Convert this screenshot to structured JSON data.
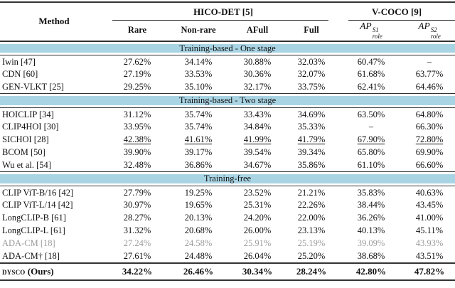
{
  "colors": {
    "section_bg": "#a9d4e4",
    "muted_text": "#9b9b9b",
    "rule": "#333333"
  },
  "table": {
    "header": {
      "method": "Method",
      "group1": "HICO-DET [5]",
      "group2": "V-COCO [9]",
      "subheaders": [
        "Rare",
        "Non-rare",
        "AFull",
        "Full"
      ],
      "ap1": {
        "base": "AP",
        "sup": "S1",
        "sub": "role"
      },
      "ap2": {
        "base": "AP",
        "sup": "S2",
        "sub": "role"
      }
    },
    "sections": [
      {
        "label": "Training-based - One stage",
        "rows": [
          {
            "method": "Iwin [47]",
            "values": [
              "27.62%",
              "34.14%",
              "30.88%",
              "32.03%",
              "60.47%",
              "–"
            ]
          },
          {
            "method": "CDN [60]",
            "values": [
              "27.19%",
              "33.53%",
              "30.36%",
              "32.07%",
              "61.68%",
              "63.77%"
            ]
          },
          {
            "method": "GEN-VLKT [25]",
            "values": [
              "29.25%",
              "35.10%",
              "32.17%",
              "33.75%",
              "62.41%",
              "64.46%"
            ]
          }
        ]
      },
      {
        "label": "Training-based - Two stage",
        "rows": [
          {
            "method": "HOICLIP [34]",
            "values": [
              "31.12%",
              "35.74%",
              "33.43%",
              "34.69%",
              "63.50%",
              "64.80%"
            ]
          },
          {
            "method": "CLIP4HOI [30]",
            "values": [
              "33.95%",
              "35.74%",
              "34.84%",
              "35.33%",
              "–",
              "66.30%"
            ]
          },
          {
            "method": "SICHOI [28]",
            "values": [
              "42.38%",
              "41.61%",
              "41.99%",
              "41.79%",
              "67.90%",
              "72.80%"
            ],
            "underline": true
          },
          {
            "method": "BCOM [50]",
            "values": [
              "39.90%",
              "39.17%",
              "39.54%",
              "39.34%",
              "65.80%",
              "69.90%"
            ]
          },
          {
            "method": "Wu et al. [54]",
            "values": [
              "32.48%",
              "36.86%",
              "34.67%",
              "35.86%",
              "61.10%",
              "66.60%"
            ]
          }
        ]
      },
      {
        "label": "Training-free",
        "rows": [
          {
            "method": "CLIP ViT-B/16 [42]",
            "values": [
              "27.79%",
              "19.25%",
              "23.52%",
              "21.21%",
              "35.83%",
              "40.63%"
            ]
          },
          {
            "method": "CLIP ViT-L/14 [42]",
            "values": [
              "30.97%",
              "19.65%",
              "25.31%",
              "22.26%",
              "38.44%",
              "43.45%"
            ]
          },
          {
            "method": "LongCLIP-B [61]",
            "values": [
              "28.27%",
              "20.13%",
              "24.20%",
              "22.00%",
              "36.26%",
              "41.00%"
            ]
          },
          {
            "method": "LongCLIP-L [61]",
            "values": [
              "31.32%",
              "20.68%",
              "26.00%",
              "23.13%",
              "40.13%",
              "45.11%"
            ]
          },
          {
            "method": "ADA-CM [18]",
            "values": [
              "27.24%",
              "24.58%",
              "25.91%",
              "25.19%",
              "39.09%",
              "43.93%"
            ],
            "muted": true
          },
          {
            "method": "ADA-CM† [18]",
            "values": [
              "27.61%",
              "24.48%",
              "26.04%",
              "25.20%",
              "38.68%",
              "43.51%"
            ]
          }
        ]
      }
    ],
    "footer_row": {
      "method_smallcaps": "dysco",
      "method_suffix": " (Ours)",
      "values": [
        "34.22%",
        "26.46%",
        "30.34%",
        "28.24%",
        "42.80%",
        "47.82%"
      ]
    }
  }
}
